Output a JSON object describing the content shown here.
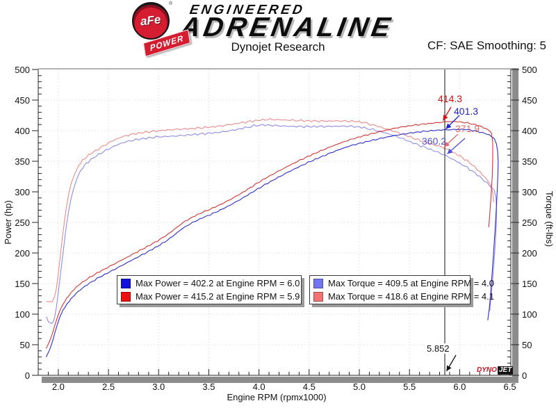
{
  "header": {
    "logo": {
      "afe": "aFe",
      "power": "POWER",
      "reg": "®",
      "line1": "ENGINEERED",
      "line2": "ADRENALINE"
    },
    "title": "Dynojet Research",
    "cf_label": "CF: SAE Smoothing: 5"
  },
  "chart_data": {
    "type": "line",
    "xlabel": "Engine RPM (rpmx1000)",
    "ylabel_left": "Power (hp)",
    "ylabel_right": "Torque (ft-lbs)",
    "xlim": [
      1.8,
      6.51
    ],
    "ylim": [
      0,
      500
    ],
    "x_major_ticks": [
      2.0,
      2.5,
      3.0,
      3.5,
      4.0,
      4.5,
      5.0,
      5.5,
      6.0,
      6.5
    ],
    "x_minor_step": 0.1,
    "y_major_ticks": [
      0,
      50,
      100,
      150,
      200,
      250,
      300,
      350,
      400,
      450,
      500
    ],
    "y_minor_step": 10,
    "grid": "dotted major gridlines",
    "legend_position": "lower center, two boxes",
    "series": [
      {
        "id": "torque-blue",
        "axis": "right",
        "color": "#8c8ce6",
        "noise": 1.8,
        "points": [
          [
            1.88,
            96
          ],
          [
            1.91,
            86
          ],
          [
            1.94,
            83
          ],
          [
            1.97,
            98
          ],
          [
            2.0,
            135
          ],
          [
            2.04,
            190
          ],
          [
            2.08,
            245
          ],
          [
            2.12,
            285
          ],
          [
            2.17,
            315
          ],
          [
            2.22,
            335
          ],
          [
            2.3,
            350
          ],
          [
            2.4,
            361
          ],
          [
            2.5,
            370
          ],
          [
            2.6,
            378
          ],
          [
            2.7,
            383
          ],
          [
            2.8,
            386
          ],
          [
            2.9,
            388
          ],
          [
            3.0,
            390
          ],
          [
            3.15,
            391
          ],
          [
            3.3,
            393
          ],
          [
            3.45,
            395
          ],
          [
            3.6,
            397
          ],
          [
            3.75,
            401
          ],
          [
            3.9,
            406
          ],
          [
            4.0,
            409.5
          ],
          [
            4.15,
            408.5
          ],
          [
            4.3,
            407
          ],
          [
            4.5,
            406.5
          ],
          [
            4.7,
            407
          ],
          [
            4.9,
            407.5
          ],
          [
            5.0,
            406
          ],
          [
            5.1,
            403
          ],
          [
            5.25,
            397
          ],
          [
            5.4,
            389
          ],
          [
            5.55,
            379
          ],
          [
            5.7,
            370
          ],
          [
            5.852,
            360.2
          ],
          [
            6.0,
            347
          ],
          [
            6.1,
            337
          ],
          [
            6.2,
            325
          ],
          [
            6.3,
            310
          ],
          [
            6.36,
            300
          ],
          [
            6.37,
            260
          ],
          [
            6.35,
            200
          ],
          [
            6.32,
            140
          ],
          [
            6.3,
            105
          ]
        ]
      },
      {
        "id": "torque-red",
        "axis": "right",
        "color": "#eb8a8a",
        "noise": 1.8,
        "points": [
          [
            1.88,
            122
          ],
          [
            1.93,
            118
          ],
          [
            1.97,
            130
          ],
          [
            2.0,
            165
          ],
          [
            2.04,
            225
          ],
          [
            2.08,
            275
          ],
          [
            2.12,
            310
          ],
          [
            2.17,
            332
          ],
          [
            2.22,
            348
          ],
          [
            2.3,
            360
          ],
          [
            2.4,
            370
          ],
          [
            2.5,
            380
          ],
          [
            2.6,
            388
          ],
          [
            2.7,
            393
          ],
          [
            2.8,
            396
          ],
          [
            2.9,
            398
          ],
          [
            3.0,
            400
          ],
          [
            3.15,
            402
          ],
          [
            3.3,
            403
          ],
          [
            3.45,
            405
          ],
          [
            3.6,
            407
          ],
          [
            3.75,
            411
          ],
          [
            3.9,
            415
          ],
          [
            4.05,
            418
          ],
          [
            4.1,
            418.6
          ],
          [
            4.25,
            417.5
          ],
          [
            4.4,
            416.5
          ],
          [
            4.6,
            415.5
          ],
          [
            4.8,
            416
          ],
          [
            5.0,
            415
          ],
          [
            5.1,
            411
          ],
          [
            5.25,
            404
          ],
          [
            5.4,
            396
          ],
          [
            5.55,
            387
          ],
          [
            5.7,
            379
          ],
          [
            5.852,
            371.9
          ],
          [
            6.0,
            359
          ],
          [
            6.1,
            348
          ],
          [
            6.2,
            333
          ],
          [
            6.3,
            315
          ],
          [
            6.33,
            300
          ],
          [
            6.34,
            283
          ]
        ]
      },
      {
        "id": "power-blue",
        "axis": "left",
        "color": "#2e2ec8",
        "noise": 1.1,
        "points": [
          [
            1.88,
            30
          ],
          [
            1.93,
            48
          ],
          [
            1.98,
            78
          ],
          [
            2.03,
            102
          ],
          [
            2.1,
            120
          ],
          [
            2.2,
            138
          ],
          [
            2.35,
            155
          ],
          [
            2.5,
            168
          ],
          [
            2.65,
            181
          ],
          [
            2.8,
            194
          ],
          [
            2.95,
            207
          ],
          [
            3.1,
            222
          ],
          [
            3.25,
            242
          ],
          [
            3.4,
            255
          ],
          [
            3.55,
            265
          ],
          [
            3.7,
            277
          ],
          [
            3.85,
            291
          ],
          [
            4.0,
            306
          ],
          [
            4.15,
            320
          ],
          [
            4.3,
            333
          ],
          [
            4.45,
            345
          ],
          [
            4.6,
            356
          ],
          [
            4.75,
            366
          ],
          [
            4.9,
            375
          ],
          [
            5.05,
            381
          ],
          [
            5.2,
            387
          ],
          [
            5.35,
            392
          ],
          [
            5.5,
            396
          ],
          [
            5.65,
            399
          ],
          [
            5.8,
            401
          ],
          [
            5.852,
            401.3
          ],
          [
            6.0,
            402.2
          ],
          [
            6.1,
            401.5
          ],
          [
            6.2,
            398
          ],
          [
            6.3,
            393
          ],
          [
            6.36,
            385
          ],
          [
            6.385,
            360
          ],
          [
            6.38,
            320
          ],
          [
            6.36,
            255
          ],
          [
            6.33,
            180
          ],
          [
            6.3,
            115
          ],
          [
            6.28,
            90
          ]
        ]
      },
      {
        "id": "power-red",
        "axis": "left",
        "color": "#d23535",
        "noise": 1.1,
        "points": [
          [
            1.88,
            44
          ],
          [
            1.93,
            62
          ],
          [
            1.98,
            90
          ],
          [
            2.03,
            112
          ],
          [
            2.1,
            130
          ],
          [
            2.2,
            148
          ],
          [
            2.35,
            164
          ],
          [
            2.5,
            177
          ],
          [
            2.65,
            190
          ],
          [
            2.8,
            203
          ],
          [
            2.95,
            216
          ],
          [
            3.1,
            231
          ],
          [
            3.25,
            251
          ],
          [
            3.4,
            264
          ],
          [
            3.55,
            274
          ],
          [
            3.7,
            286
          ],
          [
            3.85,
            300
          ],
          [
            4.0,
            316
          ],
          [
            4.15,
            330
          ],
          [
            4.3,
            343
          ],
          [
            4.45,
            355
          ],
          [
            4.6,
            366
          ],
          [
            4.75,
            376
          ],
          [
            4.9,
            385
          ],
          [
            5.05,
            392
          ],
          [
            5.2,
            398
          ],
          [
            5.35,
            404
          ],
          [
            5.5,
            408
          ],
          [
            5.65,
            411
          ],
          [
            5.8,
            413.5
          ],
          [
            5.852,
            414.3
          ],
          [
            5.9,
            415.2
          ],
          [
            6.0,
            414.5
          ],
          [
            6.1,
            412
          ],
          [
            6.2,
            408
          ],
          [
            6.28,
            402
          ],
          [
            6.33,
            394
          ],
          [
            6.33,
            340
          ],
          [
            6.31,
            285
          ],
          [
            6.29,
            242
          ]
        ]
      }
    ],
    "legend_entries": [
      {
        "swatch": "#1212dd",
        "label": "Max Power = 402.2 at Engine RPM = 6.0"
      },
      {
        "swatch": "#ee1111",
        "label": "Max Power = 415.2 at Engine RPM = 5.9"
      },
      {
        "swatch": "#7575f2",
        "label": "Max Torque = 409.5 at Engine RPM = 4.0"
      },
      {
        "swatch": "#f27575",
        "label": "Max Torque = 418.6 at Engine RPM = 4.1"
      }
    ],
    "cursor": {
      "x": 5.852,
      "label": "5.852",
      "readings": [
        {
          "label": "414.3",
          "value": 414.3,
          "color": "#cc1111",
          "series": "power-red"
        },
        {
          "label": "401.3",
          "value": 401.3,
          "color": "#2222cc",
          "series": "power-blue"
        },
        {
          "label": "371.9",
          "value": 371.9,
          "color": "#e06a6a",
          "series": "torque-red"
        },
        {
          "label": "360.2",
          "value": 360.2,
          "color": "#4d4dd6",
          "series": "torque-blue"
        }
      ]
    },
    "watermark": {
      "dyno": "DYNO",
      "jet": "JET"
    }
  }
}
